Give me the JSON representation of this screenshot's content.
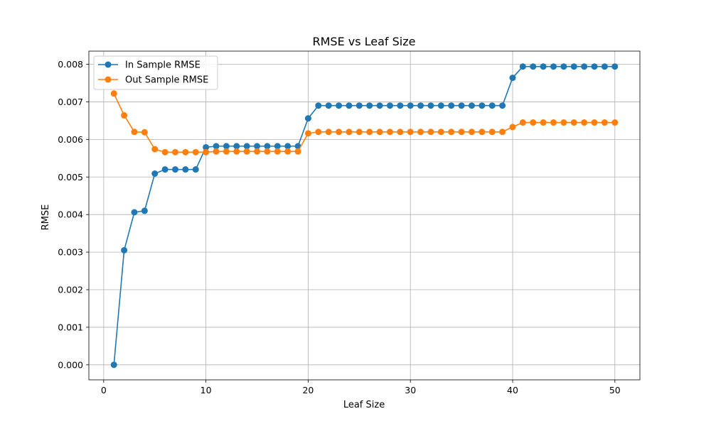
{
  "chart_data": {
    "type": "line",
    "title": "RMSE vs Leaf Size",
    "xlabel": "Leaf Size",
    "ylabel": "RMSE",
    "xlim": [
      -1.45,
      52.45
    ],
    "ylim": [
      -0.0004,
      0.00835
    ],
    "xticks": [
      0,
      10,
      20,
      30,
      40,
      50
    ],
    "yticks": [
      0.0,
      0.001,
      0.002,
      0.003,
      0.004,
      0.005,
      0.006,
      0.007,
      0.008
    ],
    "xtick_labels": [
      "0",
      "10",
      "20",
      "30",
      "40",
      "50"
    ],
    "ytick_labels": [
      "0.000",
      "0.001",
      "0.002",
      "0.003",
      "0.004",
      "0.005",
      "0.006",
      "0.007",
      "0.008"
    ],
    "grid": true,
    "legend": "upper-left",
    "x": [
      1,
      2,
      3,
      4,
      5,
      6,
      7,
      8,
      9,
      10,
      11,
      12,
      13,
      14,
      15,
      16,
      17,
      18,
      19,
      20,
      21,
      22,
      23,
      24,
      25,
      26,
      27,
      28,
      29,
      30,
      31,
      32,
      33,
      34,
      35,
      36,
      37,
      38,
      39,
      40,
      41,
      42,
      43,
      44,
      45,
      46,
      47,
      48,
      49,
      50
    ],
    "series": [
      {
        "name": "In Sample RMSE",
        "color": "#1f77b4",
        "values": [
          0.0,
          0.00305,
          0.00406,
          0.0041,
          0.00509,
          0.0052,
          0.0052,
          0.0052,
          0.0052,
          0.00579,
          0.00582,
          0.00582,
          0.00582,
          0.00582,
          0.00582,
          0.00582,
          0.00582,
          0.00582,
          0.00582,
          0.00656,
          0.0069,
          0.0069,
          0.0069,
          0.0069,
          0.0069,
          0.0069,
          0.0069,
          0.0069,
          0.0069,
          0.0069,
          0.0069,
          0.0069,
          0.0069,
          0.0069,
          0.0069,
          0.0069,
          0.0069,
          0.0069,
          0.0069,
          0.00764,
          0.00794,
          0.00794,
          0.00794,
          0.00794,
          0.00794,
          0.00794,
          0.00794,
          0.00794,
          0.00794,
          0.00794
        ]
      },
      {
        "name": "Out Sample RMSE",
        "color": "#ff7f0e",
        "values": [
          0.00722,
          0.00664,
          0.0062,
          0.00619,
          0.00574,
          0.00566,
          0.00566,
          0.00566,
          0.00566,
          0.00566,
          0.00568,
          0.00568,
          0.00568,
          0.00568,
          0.00568,
          0.00568,
          0.00568,
          0.00568,
          0.00568,
          0.00616,
          0.0062,
          0.0062,
          0.0062,
          0.0062,
          0.0062,
          0.0062,
          0.0062,
          0.0062,
          0.0062,
          0.0062,
          0.0062,
          0.0062,
          0.0062,
          0.0062,
          0.0062,
          0.0062,
          0.0062,
          0.0062,
          0.0062,
          0.00633,
          0.00645,
          0.00645,
          0.00645,
          0.00645,
          0.00645,
          0.00645,
          0.00645,
          0.00645,
          0.00645,
          0.00645
        ]
      }
    ]
  }
}
